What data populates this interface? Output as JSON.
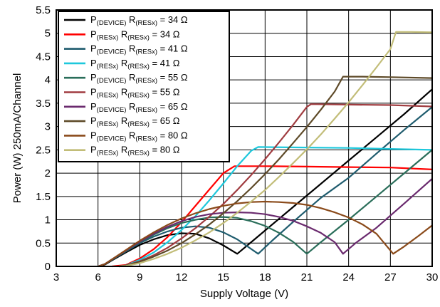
{
  "chart_data": {
    "type": "line",
    "xlabel": "Supply Voltage (V)",
    "ylabel": "Power (W) 250mA/Channel",
    "xlim": [
      3,
      30
    ],
    "ylim": [
      0,
      5.5
    ],
    "x_ticks": [
      "3",
      "6",
      "9",
      "12",
      "15",
      "18",
      "21",
      "24",
      "27",
      "30"
    ],
    "y_ticks": [
      "0",
      "0.5",
      "1",
      "1.5",
      "2",
      "2.5",
      "3",
      "3.5",
      "4",
      "4.5",
      "5",
      "5.5"
    ],
    "grid": true,
    "legend_position": "top-left",
    "series": [
      {
        "name": "P(DEVICE) R(RESx) = 34 Ω",
        "label_main": "P",
        "label_sub": "(DEVICE)",
        "label_mid": " R",
        "label_sub2": "(RESx)",
        "label_tail": " = 34 Ω",
        "color": "#000000",
        "points": [
          [
            6,
            0
          ],
          [
            6.5,
            0.04
          ],
          [
            7,
            0.13
          ],
          [
            8,
            0.3
          ],
          [
            9,
            0.46
          ],
          [
            10,
            0.58
          ],
          [
            11,
            0.67
          ],
          [
            12,
            0.71
          ],
          [
            13,
            0.7
          ],
          [
            14,
            0.6
          ],
          [
            15,
            0.45
          ],
          [
            16,
            0.27
          ],
          [
            17,
            0.52
          ],
          [
            18,
            0.77
          ],
          [
            20,
            1.27
          ],
          [
            22,
            1.77
          ],
          [
            24,
            2.27
          ],
          [
            26,
            2.77
          ],
          [
            28,
            3.27
          ],
          [
            30,
            3.8
          ]
        ]
      },
      {
        "name": "P(RESx) R(RESx) = 34 Ω",
        "label_main": "P",
        "label_sub": "(RESx)",
        "label_mid": " R",
        "label_sub2": "(RESx)",
        "label_tail": " = 34 Ω",
        "color": "#ff0000",
        "points": [
          [
            7,
            0
          ],
          [
            8,
            0.03
          ],
          [
            9,
            0.17
          ],
          [
            10,
            0.37
          ],
          [
            11,
            0.63
          ],
          [
            12,
            0.95
          ],
          [
            13,
            1.3
          ],
          [
            14,
            1.65
          ],
          [
            15,
            2.0
          ],
          [
            15.8,
            2.15
          ],
          [
            18,
            2.15
          ],
          [
            21,
            2.14
          ],
          [
            24,
            2.13
          ],
          [
            27,
            2.12
          ],
          [
            30,
            2.08
          ]
        ]
      },
      {
        "name": "P(DEVICE) R(RESx) = 41 Ω",
        "label_main": "P",
        "label_sub": "(DEVICE)",
        "label_mid": " R",
        "label_sub2": "(RESx)",
        "label_tail": " = 41 Ω",
        "color": "#1f5c6e",
        "points": [
          [
            6,
            0
          ],
          [
            6.5,
            0.05
          ],
          [
            7,
            0.14
          ],
          [
            8,
            0.32
          ],
          [
            9,
            0.5
          ],
          [
            10,
            0.64
          ],
          [
            11,
            0.75
          ],
          [
            12,
            0.83
          ],
          [
            13,
            0.86
          ],
          [
            14,
            0.83
          ],
          [
            15,
            0.73
          ],
          [
            16,
            0.58
          ],
          [
            17.5,
            0.27
          ],
          [
            18.5,
            0.55
          ],
          [
            20,
            0.95
          ],
          [
            22,
            1.47
          ],
          [
            24,
            1.9
          ],
          [
            26,
            2.42
          ],
          [
            28,
            2.93
          ],
          [
            30,
            3.42
          ]
        ]
      },
      {
        "name": "P(RESx) R(RESx) = 41 Ω",
        "label_main": "P",
        "label_sub": "(RESx)",
        "label_mid": " R",
        "label_sub2": "(RESx)",
        "label_tail": " = 41 Ω",
        "color": "#1ec8dc",
        "points": [
          [
            7.5,
            0
          ],
          [
            8,
            0.02
          ],
          [
            9,
            0.14
          ],
          [
            10,
            0.3
          ],
          [
            11,
            0.52
          ],
          [
            12,
            0.78
          ],
          [
            13,
            1.08
          ],
          [
            14,
            1.42
          ],
          [
            15,
            1.78
          ],
          [
            16,
            2.15
          ],
          [
            17,
            2.48
          ],
          [
            17.5,
            2.56
          ],
          [
            21,
            2.55
          ],
          [
            24,
            2.54
          ],
          [
            27,
            2.52
          ],
          [
            30,
            2.5
          ]
        ]
      },
      {
        "name": "P(DEVICE) R(RESx) = 55 Ω",
        "label_main": "P",
        "label_sub": "(DEVICE)",
        "label_mid": " R",
        "label_sub2": "(RESx)",
        "label_tail": " = 55 Ω",
        "color": "#2a6e5a",
        "points": [
          [
            6,
            0
          ],
          [
            6.5,
            0.05
          ],
          [
            7,
            0.15
          ],
          [
            8,
            0.33
          ],
          [
            9,
            0.52
          ],
          [
            10,
            0.68
          ],
          [
            11,
            0.82
          ],
          [
            12,
            0.93
          ],
          [
            13,
            1.0
          ],
          [
            14,
            1.05
          ],
          [
            15,
            1.06
          ],
          [
            16,
            1.04
          ],
          [
            17,
            0.97
          ],
          [
            18,
            0.87
          ],
          [
            19,
            0.72
          ],
          [
            20,
            0.53
          ],
          [
            21,
            0.27
          ],
          [
            22,
            0.52
          ],
          [
            24,
            1.0
          ],
          [
            26,
            1.5
          ],
          [
            28,
            2.0
          ],
          [
            30,
            2.5
          ]
        ]
      },
      {
        "name": "P(RESx) R(RESx) = 55 Ω",
        "label_main": "P",
        "label_sub": "(RESx)",
        "label_mid": " R",
        "label_sub2": "(RESx)",
        "label_tail": " = 55 Ω",
        "color": "#a03c40",
        "points": [
          [
            7.5,
            0
          ],
          [
            8,
            0.02
          ],
          [
            9,
            0.11
          ],
          [
            10,
            0.24
          ],
          [
            11,
            0.4
          ],
          [
            12,
            0.6
          ],
          [
            13,
            0.82
          ],
          [
            14,
            1.07
          ],
          [
            15,
            1.34
          ],
          [
            16,
            1.64
          ],
          [
            17,
            1.96
          ],
          [
            18,
            2.3
          ],
          [
            19,
            2.66
          ],
          [
            20,
            3.03
          ],
          [
            21,
            3.42
          ],
          [
            21.3,
            3.48
          ],
          [
            24,
            3.47
          ],
          [
            27,
            3.46
          ],
          [
            30,
            3.43
          ]
        ]
      },
      {
        "name": "P(DEVICE) R(RESx) = 65 Ω",
        "label_main": "P",
        "label_sub": "(DEVICE)",
        "label_mid": " R",
        "label_sub2": "(RESx)",
        "label_tail": " = 65 Ω",
        "color": "#6a2a6e",
        "points": [
          [
            6,
            0
          ],
          [
            6.5,
            0.05
          ],
          [
            7,
            0.15
          ],
          [
            8,
            0.34
          ],
          [
            9,
            0.53
          ],
          [
            10,
            0.7
          ],
          [
            11,
            0.85
          ],
          [
            12,
            0.97
          ],
          [
            13,
            1.06
          ],
          [
            14,
            1.12
          ],
          [
            15,
            1.15
          ],
          [
            16,
            1.16
          ],
          [
            17,
            1.15
          ],
          [
            18,
            1.12
          ],
          [
            19,
            1.06
          ],
          [
            20,
            0.98
          ],
          [
            21,
            0.86
          ],
          [
            22,
            0.72
          ],
          [
            23,
            0.52
          ],
          [
            23.6,
            0.27
          ],
          [
            24.5,
            0.5
          ],
          [
            26,
            0.83
          ],
          [
            28,
            1.35
          ],
          [
            30,
            1.88
          ]
        ]
      },
      {
        "name": "P(RESx) R(RESx) = 65 Ω",
        "label_main": "P",
        "label_sub": "(RESx)",
        "label_mid": " R",
        "label_sub2": "(RESx)",
        "label_tail": " = 65 Ω",
        "color": "#5e4a28",
        "points": [
          [
            7.5,
            0
          ],
          [
            8,
            0.02
          ],
          [
            9,
            0.1
          ],
          [
            10,
            0.21
          ],
          [
            11,
            0.34
          ],
          [
            12,
            0.5
          ],
          [
            13,
            0.69
          ],
          [
            14,
            0.9
          ],
          [
            15,
            1.14
          ],
          [
            16,
            1.4
          ],
          [
            17,
            1.68
          ],
          [
            18,
            1.98
          ],
          [
            19,
            2.3
          ],
          [
            20,
            2.64
          ],
          [
            21,
            2.99
          ],
          [
            22,
            3.36
          ],
          [
            23,
            3.75
          ],
          [
            23.6,
            4.07
          ],
          [
            25,
            4.07
          ],
          [
            27,
            4.06
          ],
          [
            30,
            4.04
          ]
        ]
      },
      {
        "name": "P(DEVICE) R(RESx) = 80 Ω",
        "label_main": "P",
        "label_sub": "(DEVICE)",
        "label_mid": " R",
        "label_sub2": "(RESx)",
        "label_tail": " = 80 Ω",
        "color": "#8a4a1a",
        "points": [
          [
            6,
            0
          ],
          [
            6.5,
            0.05
          ],
          [
            7,
            0.15
          ],
          [
            8,
            0.35
          ],
          [
            9,
            0.55
          ],
          [
            10,
            0.73
          ],
          [
            11,
            0.89
          ],
          [
            12,
            1.03
          ],
          [
            13,
            1.14
          ],
          [
            14,
            1.23
          ],
          [
            15,
            1.3
          ],
          [
            16,
            1.35
          ],
          [
            17,
            1.38
          ],
          [
            18,
            1.39
          ],
          [
            19,
            1.38
          ],
          [
            20,
            1.36
          ],
          [
            21,
            1.32
          ],
          [
            22,
            1.25
          ],
          [
            23,
            1.16
          ],
          [
            24,
            1.05
          ],
          [
            25,
            0.9
          ],
          [
            26,
            0.7
          ],
          [
            27.2,
            0.27
          ],
          [
            28,
            0.43
          ],
          [
            29,
            0.65
          ],
          [
            30,
            0.88
          ]
        ]
      },
      {
        "name": "P(RESx) R(RESx) = 80 Ω",
        "label_main": "P",
        "label_sub": "(RESx)",
        "label_mid": " R",
        "label_sub2": "(RESx)",
        "label_tail": " = 80 Ω",
        "color": "#c2bd78",
        "points": [
          [
            7.5,
            0
          ],
          [
            8,
            0.01
          ],
          [
            9,
            0.07
          ],
          [
            10,
            0.16
          ],
          [
            11,
            0.27
          ],
          [
            12,
            0.4
          ],
          [
            13,
            0.56
          ],
          [
            14,
            0.73
          ],
          [
            15,
            0.93
          ],
          [
            16,
            1.15
          ],
          [
            17,
            1.39
          ],
          [
            18,
            1.64
          ],
          [
            19,
            1.92
          ],
          [
            20,
            2.21
          ],
          [
            21,
            2.51
          ],
          [
            22,
            2.83
          ],
          [
            23,
            3.17
          ],
          [
            24,
            3.52
          ],
          [
            25,
            3.89
          ],
          [
            26,
            4.27
          ],
          [
            27,
            4.66
          ],
          [
            27.4,
            5.03
          ],
          [
            28.5,
            5.03
          ],
          [
            30,
            5.02
          ]
        ]
      }
    ]
  }
}
